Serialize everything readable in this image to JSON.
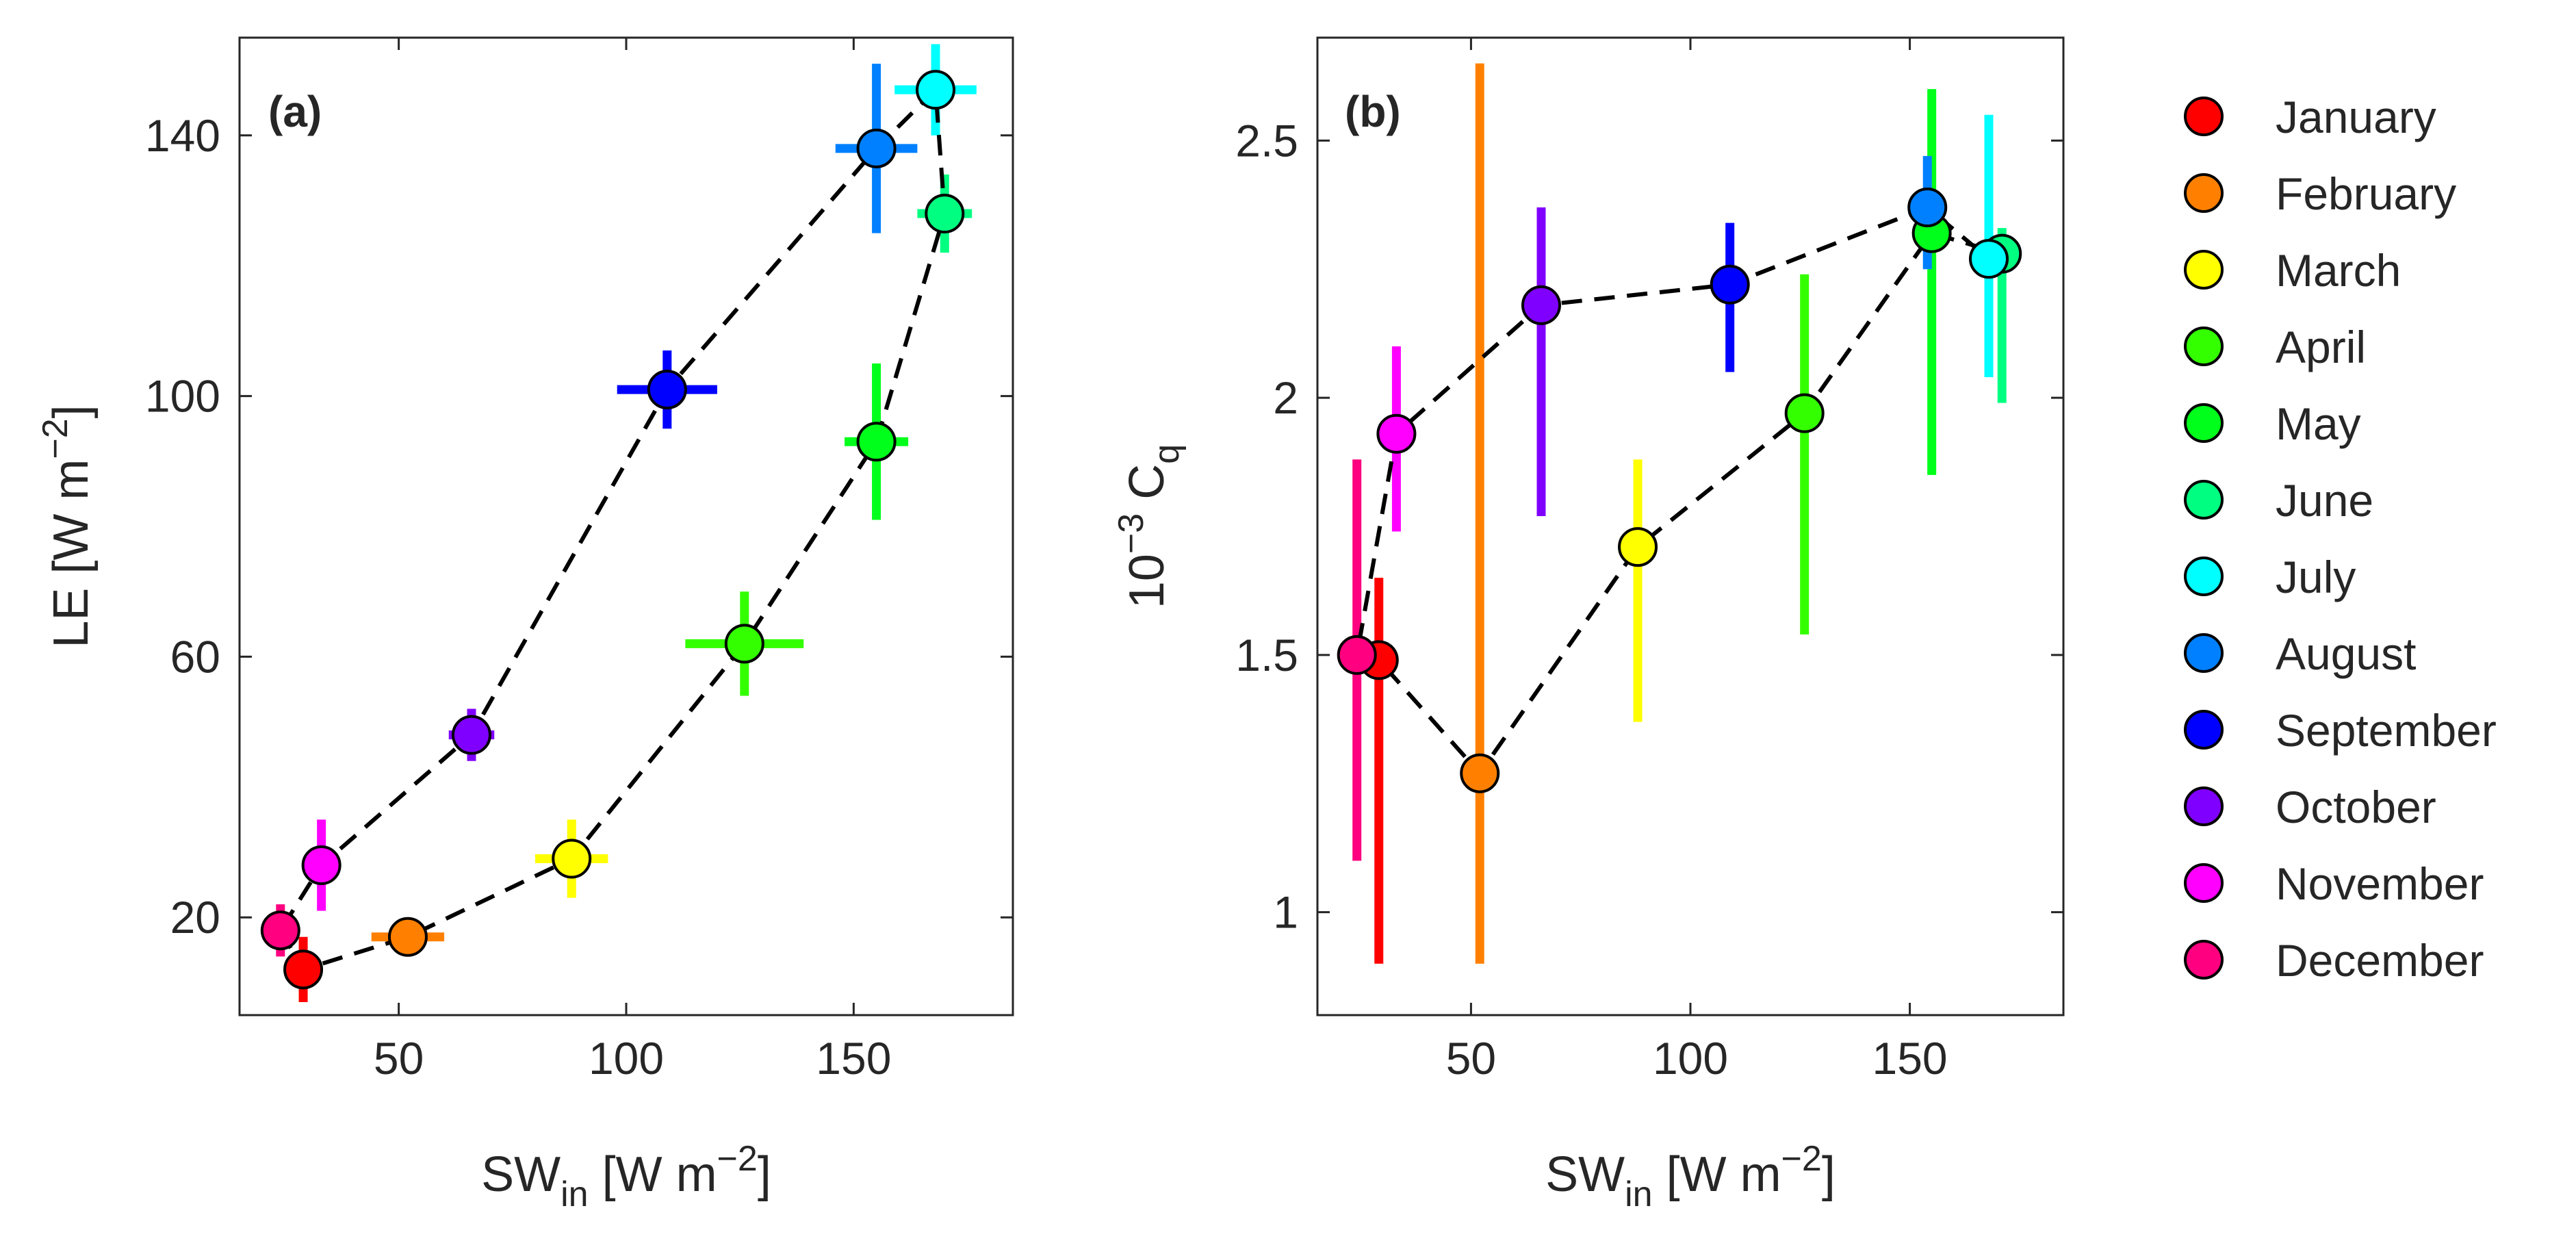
{
  "chart_data": [
    {
      "type": "scatter",
      "panel_label": "(a)",
      "xlabel": "SW_in [W m^-2]",
      "xlabel_parts": {
        "base": "SW",
        "sub": "in",
        "unit_open": " [W m",
        "sup": "−2",
        "unit_close": "]"
      },
      "ylabel": "LE [W m^-2]",
      "ylabel_parts": {
        "base": "LE [W m",
        "sup": "−2",
        "close": "]"
      },
      "xlim": [
        15,
        185
      ],
      "ylim": [
        5,
        155
      ],
      "xticks": [
        50,
        100,
        150
      ],
      "xtick_labels": [
        "50",
        "100",
        "150"
      ],
      "yticks": [
        20,
        60,
        100,
        140
      ],
      "ytick_labels": [
        "20",
        "60",
        "100",
        "140"
      ],
      "grid": false,
      "connector": "dashed black line through monthly points",
      "points": [
        {
          "month": "January",
          "x": 29,
          "y": 12,
          "xerr": 2,
          "yerr": 5
        },
        {
          "month": "February",
          "x": 52,
          "y": 17,
          "xerr": 8,
          "yerr": 2
        },
        {
          "month": "March",
          "x": 88,
          "y": 29,
          "xerr": 8,
          "yerr": 6
        },
        {
          "month": "April",
          "x": 126,
          "y": 62,
          "xerr": 13,
          "yerr": 8
        },
        {
          "month": "May",
          "x": 155,
          "y": 93,
          "xerr": 7,
          "yerr": 12
        },
        {
          "month": "June",
          "x": 170,
          "y": 128,
          "xerr": 6,
          "yerr": 6
        },
        {
          "month": "July",
          "x": 168,
          "y": 147,
          "xerr": 9,
          "yerr": 7
        },
        {
          "month": "August",
          "x": 155,
          "y": 138,
          "xerr": 9,
          "yerr": 13
        },
        {
          "month": "September",
          "x": 109,
          "y": 101,
          "xerr": 11,
          "yerr": 6
        },
        {
          "month": "October",
          "x": 66,
          "y": 48,
          "xerr": 5,
          "yerr": 4
        },
        {
          "month": "November",
          "x": 33,
          "y": 28,
          "xerr": 2,
          "yerr": 7
        },
        {
          "month": "December",
          "x": 24,
          "y": 18,
          "xerr": 2,
          "yerr": 4
        }
      ]
    },
    {
      "type": "scatter",
      "panel_label": "(b)",
      "xlabel": "SW_in [W m^-2]",
      "xlabel_parts": {
        "base": "SW",
        "sub": "in",
        "unit_open": " [W m",
        "sup": "−2",
        "unit_close": "]"
      },
      "ylabel": "10^-3 C_q",
      "ylabel_parts": {
        "base": "10",
        "sup": "−3",
        "mid": " C",
        "sub": "q"
      },
      "xlim": [
        15,
        185
      ],
      "ylim": [
        0.8,
        2.7
      ],
      "xticks": [
        50,
        100,
        150
      ],
      "xtick_labels": [
        "50",
        "100",
        "150"
      ],
      "yticks": [
        1,
        1.5,
        2,
        2.5
      ],
      "ytick_labels": [
        "1",
        "1.5",
        "2",
        "2.5"
      ],
      "grid": false,
      "connector": "dashed black line through monthly points",
      "points": [
        {
          "month": "January",
          "x": 29,
          "y": 1.49,
          "yerr": [
            0.9,
            1.65
          ]
        },
        {
          "month": "February",
          "x": 52,
          "y": 1.27,
          "yerr": [
            0.9,
            2.65
          ]
        },
        {
          "month": "March",
          "x": 88,
          "y": 1.71,
          "yerr": [
            1.37,
            1.88
          ]
        },
        {
          "month": "April",
          "x": 126,
          "y": 1.97,
          "yerr": [
            1.54,
            2.24
          ]
        },
        {
          "month": "May",
          "x": 155,
          "y": 2.32,
          "yerr": [
            1.85,
            2.6
          ]
        },
        {
          "month": "June",
          "x": 171,
          "y": 2.28,
          "yerr": [
            1.99,
            2.33
          ]
        },
        {
          "month": "July",
          "x": 168,
          "y": 2.27,
          "yerr": [
            2.04,
            2.55
          ]
        },
        {
          "month": "August",
          "x": 154,
          "y": 2.37,
          "yerr": [
            2.25,
            2.47
          ]
        },
        {
          "month": "September",
          "x": 109,
          "y": 2.22,
          "yerr": [
            2.05,
            2.34
          ]
        },
        {
          "month": "October",
          "x": 66,
          "y": 2.18,
          "yerr": [
            1.77,
            2.37
          ]
        },
        {
          "month": "November",
          "x": 33,
          "y": 1.93,
          "yerr": [
            1.74,
            2.1
          ]
        },
        {
          "month": "December",
          "x": 24,
          "y": 1.5,
          "yerr": [
            1.1,
            1.88
          ]
        }
      ]
    }
  ],
  "legend": {
    "placement": "right",
    "entries": [
      {
        "label": "January",
        "color": "#ff0000"
      },
      {
        "label": "February",
        "color": "#ff8000"
      },
      {
        "label": "March",
        "color": "#ffff00"
      },
      {
        "label": "April",
        "color": "#33ff00"
      },
      {
        "label": "May",
        "color": "#00ff1a"
      },
      {
        "label": "June",
        "color": "#00ff80"
      },
      {
        "label": "July",
        "color": "#00ffff"
      },
      {
        "label": "August",
        "color": "#0080ff"
      },
      {
        "label": "September",
        "color": "#0000ff"
      },
      {
        "label": "October",
        "color": "#8000ff"
      },
      {
        "label": "November",
        "color": "#ff00ff"
      },
      {
        "label": "December",
        "color": "#ff0080"
      }
    ]
  },
  "connection_order": [
    "December",
    "January",
    "February",
    "March",
    "April",
    "May",
    "June",
    "July",
    "August",
    "September",
    "October",
    "November",
    "December"
  ]
}
